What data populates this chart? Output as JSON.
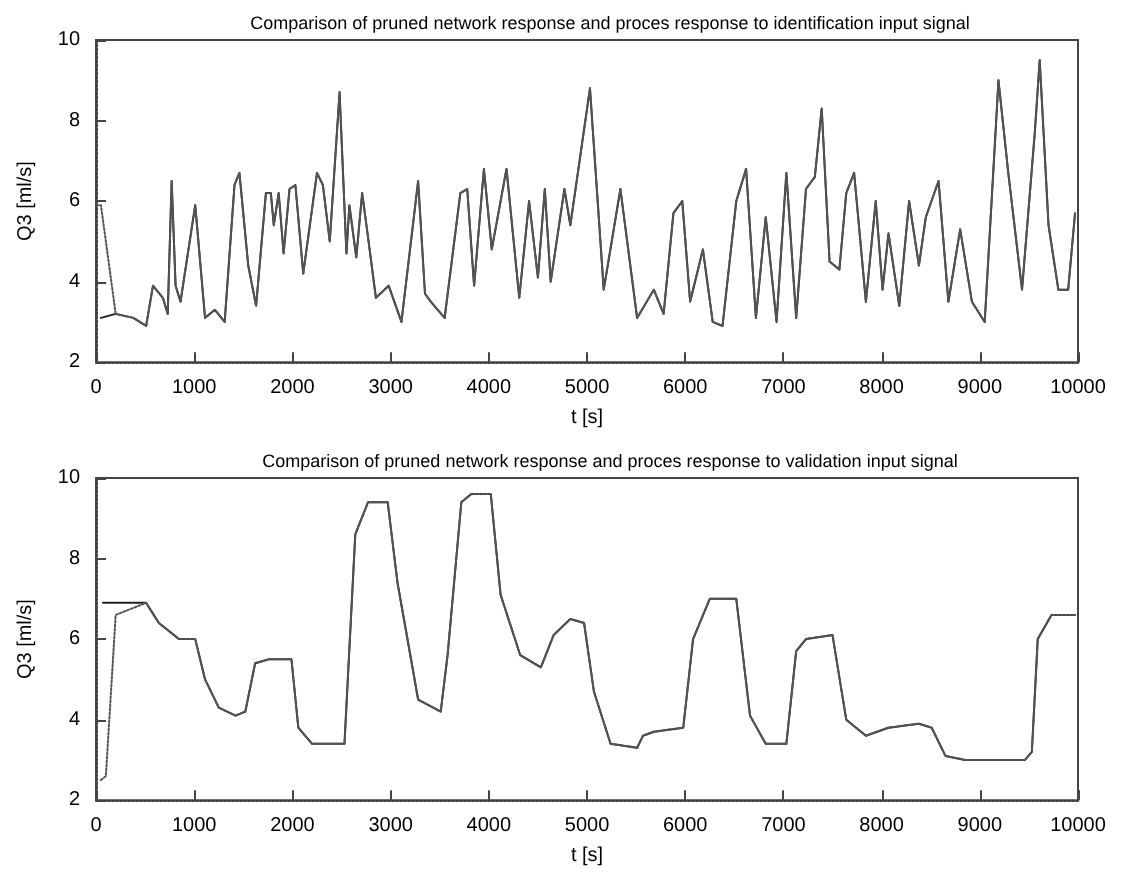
{
  "chart_data": [
    {
      "type": "line",
      "title": "Comparison of pruned network response and proces response to identification input signal",
      "xlabel": "t [s]",
      "ylabel": "Q3 [ml/s]",
      "xlim": [
        0,
        10000
      ],
      "xticks": [
        0,
        1000,
        2000,
        3000,
        4000,
        5000,
        6000,
        7000,
        8000,
        9000,
        10000
      ],
      "ylim": [
        2,
        10
      ],
      "yticks": [
        2,
        4,
        6,
        8,
        10
      ],
      "grid": false,
      "marker": "none",
      "series": [
        {
          "color": "#222222",
          "line_style": "solid",
          "x": [
            50,
            200,
            380,
            510,
            580,
            680,
            730,
            770,
            810,
            860,
            1010,
            1110,
            1210,
            1310,
            1410,
            1460,
            1550,
            1630,
            1730,
            1780,
            1810,
            1860,
            1910,
            1970,
            2030,
            2110,
            2250,
            2310,
            2380,
            2480,
            2550,
            2580,
            2650,
            2710,
            2770,
            2850,
            2980,
            3110,
            3280,
            3350,
            3410,
            3550,
            3710,
            3780,
            3850,
            3950,
            4030,
            4180,
            4310,
            4410,
            4500,
            4570,
            4630,
            4770,
            4830,
            5030,
            5170,
            5340,
            5510,
            5680,
            5780,
            5880,
            5970,
            6050,
            6180,
            6280,
            6380,
            6520,
            6620,
            6720,
            6820,
            6930,
            7030,
            7130,
            7230,
            7320,
            7390,
            7470,
            7570,
            7640,
            7720,
            7840,
            7940,
            8010,
            8070,
            8180,
            8280,
            8380,
            8450,
            8580,
            8680,
            8800,
            8920,
            9050,
            9160,
            9190,
            9290,
            9430,
            9560,
            9610,
            9700,
            9800,
            9900,
            9970
          ],
          "values": [
            3.1,
            3.2,
            3.1,
            2.9,
            3.9,
            3.6,
            3.2,
            6.5,
            3.9,
            3.5,
            5.9,
            3.1,
            3.3,
            3.0,
            6.4,
            6.7,
            4.4,
            3.4,
            6.2,
            6.2,
            5.4,
            6.2,
            4.7,
            6.3,
            6.4,
            4.2,
            6.7,
            6.4,
            5.0,
            8.7,
            4.7,
            5.9,
            4.6,
            6.2,
            5.1,
            3.6,
            3.9,
            3.0,
            6.5,
            3.7,
            3.5,
            3.1,
            6.2,
            6.3,
            3.9,
            6.8,
            4.8,
            6.8,
            3.6,
            6.0,
            4.1,
            6.3,
            4.0,
            6.3,
            5.4,
            8.8,
            3.8,
            6.3,
            3.1,
            3.8,
            3.2,
            5.7,
            6.0,
            3.5,
            4.8,
            3.0,
            2.9,
            6.0,
            6.8,
            3.1,
            5.6,
            3.0,
            6.7,
            3.1,
            6.3,
            6.6,
            8.3,
            4.5,
            4.3,
            6.2,
            6.7,
            3.5,
            6.0,
            3.8,
            5.2,
            3.4,
            6.0,
            4.4,
            5.6,
            6.5,
            3.5,
            5.3,
            3.5,
            3.0,
            7.7,
            9.0,
            6.7,
            3.8,
            7.7,
            9.5,
            5.4,
            3.8,
            3.8,
            5.7
          ]
        },
        {
          "color": "#555555",
          "line_style": "dotted",
          "x": [
            0,
            50,
            200,
            380,
            510,
            580,
            680,
            730,
            770,
            810,
            860,
            1010,
            1110,
            1210,
            1310,
            1410,
            1460,
            1550,
            1630,
            1730,
            1780,
            1810,
            1860,
            1910,
            1970,
            2030,
            2110,
            2250,
            2310,
            2380,
            2480,
            2550,
            2580,
            2650,
            2710,
            2770,
            2850,
            2980,
            3110,
            3280,
            3350,
            3410,
            3550,
            3710,
            3780,
            3850,
            3950,
            4030,
            4180,
            4310,
            4410,
            4500,
            4570,
            4630,
            4770,
            4830,
            5030,
            5170,
            5340,
            5510,
            5680,
            5780,
            5880,
            5970,
            6050,
            6180,
            6280,
            6380,
            6520,
            6620,
            6720,
            6820,
            6930,
            7030,
            7130,
            7230,
            7320,
            7390,
            7470,
            7570,
            7640,
            7720,
            7840,
            7940,
            8010,
            8070,
            8180,
            8280,
            8380,
            8450,
            8580,
            8680,
            8800,
            8920,
            9050,
            9160,
            9190,
            9290,
            9430,
            9560,
            9610,
            9700,
            9800,
            9900,
            9970
          ],
          "values": [
            5.9,
            5.9,
            3.2,
            3.1,
            2.9,
            3.9,
            3.6,
            3.2,
            6.5,
            3.9,
            3.5,
            5.9,
            3.1,
            3.3,
            3.0,
            6.4,
            6.7,
            4.4,
            3.4,
            6.2,
            6.2,
            5.4,
            6.2,
            4.7,
            6.3,
            6.4,
            4.2,
            6.7,
            6.4,
            5.0,
            8.7,
            4.7,
            5.9,
            4.6,
            6.2,
            5.1,
            3.6,
            3.9,
            3.0,
            6.5,
            3.7,
            3.5,
            3.1,
            6.2,
            6.3,
            3.9,
            6.8,
            4.8,
            6.8,
            3.6,
            6.0,
            4.1,
            6.3,
            4.0,
            6.3,
            5.4,
            8.8,
            3.8,
            6.3,
            3.1,
            3.8,
            3.2,
            5.7,
            6.0,
            3.5,
            4.8,
            3.0,
            2.9,
            6.0,
            6.8,
            3.1,
            5.6,
            3.0,
            6.7,
            3.1,
            6.3,
            6.6,
            8.3,
            4.5,
            4.3,
            6.2,
            6.7,
            3.5,
            6.0,
            3.8,
            5.2,
            3.4,
            6.0,
            4.4,
            5.6,
            6.5,
            3.5,
            5.3,
            3.5,
            3.0,
            7.7,
            9.0,
            6.7,
            3.8,
            7.7,
            9.5,
            5.4,
            3.8,
            3.8,
            5.7
          ]
        }
      ]
    },
    {
      "type": "line",
      "title": "Comparison of pruned network response and proces response to validation input signal",
      "xlabel": "t [s]",
      "ylabel": "Q3 [ml/s]",
      "xlim": [
        0,
        10000
      ],
      "xticks": [
        0,
        1000,
        2000,
        3000,
        4000,
        5000,
        6000,
        7000,
        8000,
        9000,
        10000
      ],
      "ylim": [
        2,
        10
      ],
      "yticks": [
        2,
        4,
        6,
        8,
        10
      ],
      "grid": false,
      "marker": "none",
      "series": [
        {
          "color": "#222222",
          "line_style": "solid",
          "x": [
            70,
            510,
            640,
            845,
            1010,
            1110,
            1250,
            1420,
            1520,
            1620,
            1760,
            1990,
            2060,
            2200,
            2530,
            2640,
            2770,
            2970,
            3070,
            3280,
            3510,
            3580,
            3720,
            3820,
            4020,
            4120,
            4320,
            4530,
            4660,
            4830,
            4970,
            5070,
            5240,
            5510,
            5570,
            5680,
            5980,
            6080,
            6250,
            6520,
            6660,
            6820,
            7030,
            7130,
            7230,
            7500,
            7640,
            7840,
            8070,
            8380,
            8510,
            8650,
            8850,
            9460,
            9530,
            9590,
            9730,
            9970
          ],
          "values": [
            6.9,
            6.9,
            6.4,
            6.0,
            6.0,
            5.0,
            4.3,
            4.1,
            4.2,
            5.4,
            5.5,
            5.5,
            3.8,
            3.4,
            3.4,
            8.6,
            9.4,
            9.4,
            7.4,
            4.5,
            4.2,
            5.6,
            9.4,
            9.6,
            9.6,
            7.1,
            5.6,
            5.3,
            6.1,
            6.5,
            6.4,
            4.7,
            3.4,
            3.3,
            3.6,
            3.7,
            3.8,
            6.0,
            7.0,
            7.0,
            4.1,
            3.4,
            3.4,
            5.7,
            6.0,
            6.1,
            4.0,
            3.6,
            3.8,
            3.9,
            3.8,
            3.1,
            3.0,
            3.0,
            3.2,
            6.0,
            6.6,
            6.6
          ]
        },
        {
          "color": "#555555",
          "line_style": "dotted",
          "x": [
            50,
            100,
            135,
            200,
            510,
            640,
            845,
            1010,
            1110,
            1250,
            1420,
            1520,
            1620,
            1760,
            1990,
            2060,
            2200,
            2530,
            2640,
            2770,
            2970,
            3070,
            3280,
            3510,
            3580,
            3720,
            3820,
            4020,
            4120,
            4320,
            4530,
            4660,
            4830,
            4970,
            5070,
            5240,
            5510,
            5570,
            5680,
            5980,
            6080,
            6250,
            6520,
            6660,
            6820,
            7030,
            7130,
            7230,
            7500,
            7640,
            7840,
            8070,
            8380,
            8510,
            8650,
            8850,
            9460,
            9530,
            9590,
            9730,
            9970
          ],
          "values": [
            2.5,
            2.6,
            4.0,
            6.6,
            6.9,
            6.4,
            6.0,
            6.0,
            5.0,
            4.3,
            4.1,
            4.2,
            5.4,
            5.5,
            5.5,
            3.8,
            3.4,
            3.4,
            8.6,
            9.4,
            9.4,
            7.4,
            4.5,
            4.2,
            5.6,
            9.4,
            9.6,
            9.6,
            7.1,
            5.6,
            5.3,
            6.1,
            6.5,
            6.4,
            4.7,
            3.4,
            3.3,
            3.6,
            3.7,
            3.8,
            6.0,
            7.0,
            7.0,
            4.1,
            3.4,
            3.4,
            5.7,
            6.0,
            6.1,
            4.0,
            3.6,
            3.8,
            3.9,
            3.8,
            3.1,
            3.0,
            3.0,
            3.2,
            6.0,
            6.6,
            6.6
          ]
        }
      ]
    }
  ]
}
